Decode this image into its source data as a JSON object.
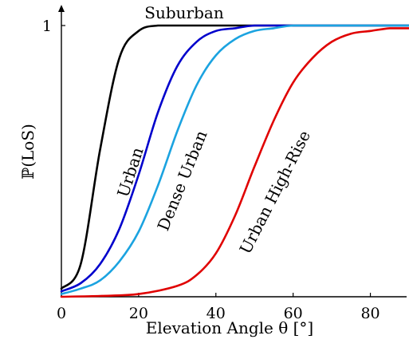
{
  "chart_data": {
    "type": "line",
    "xlabel": "Elevation Angle θ [°]",
    "ylabel": "ℙ(LoS)",
    "xlim": [
      0,
      90
    ],
    "ylim": [
      0,
      1
    ],
    "xticks": [
      0,
      20,
      40,
      60,
      80
    ],
    "yticks": [
      1
    ],
    "grid": false,
    "series": [
      {
        "name": "Suburban",
        "color": "#000000",
        "x": [
          0,
          5,
          10,
          15,
          20,
          25,
          30,
          40,
          50,
          60,
          70,
          80,
          90
        ],
        "y": [
          0.03,
          0.12,
          0.54,
          0.88,
          0.98,
          1.0,
          1.0,
          1.0,
          1.0,
          1.0,
          1.0,
          1.0,
          1.0
        ]
      },
      {
        "name": "Urban",
        "color": "#0000cc",
        "x": [
          0,
          5,
          10,
          15,
          20,
          25,
          30,
          35,
          40,
          45,
          50,
          60,
          70,
          80,
          90
        ],
        "y": [
          0.02,
          0.05,
          0.12,
          0.25,
          0.45,
          0.68,
          0.85,
          0.94,
          0.98,
          0.99,
          1.0,
          1.0,
          1.0,
          1.0,
          1.0
        ]
      },
      {
        "name": "Dense Urban",
        "color": "#1ba3e0",
        "x": [
          0,
          5,
          10,
          15,
          20,
          25,
          30,
          35,
          40,
          45,
          50,
          55,
          60,
          70,
          80,
          90
        ],
        "y": [
          0.01,
          0.03,
          0.06,
          0.13,
          0.24,
          0.41,
          0.61,
          0.78,
          0.89,
          0.95,
          0.98,
          0.99,
          1.0,
          1.0,
          1.0,
          1.0
        ]
      },
      {
        "name": "Urban High-Rise",
        "color": "#e00000",
        "x": [
          0,
          10,
          20,
          30,
          35,
          40,
          45,
          50,
          55,
          60,
          65,
          70,
          75,
          80,
          85,
          90
        ],
        "y": [
          0.0,
          0.003,
          0.01,
          0.04,
          0.08,
          0.16,
          0.3,
          0.48,
          0.65,
          0.79,
          0.88,
          0.94,
          0.97,
          0.98,
          0.99,
          0.99
        ]
      }
    ]
  }
}
